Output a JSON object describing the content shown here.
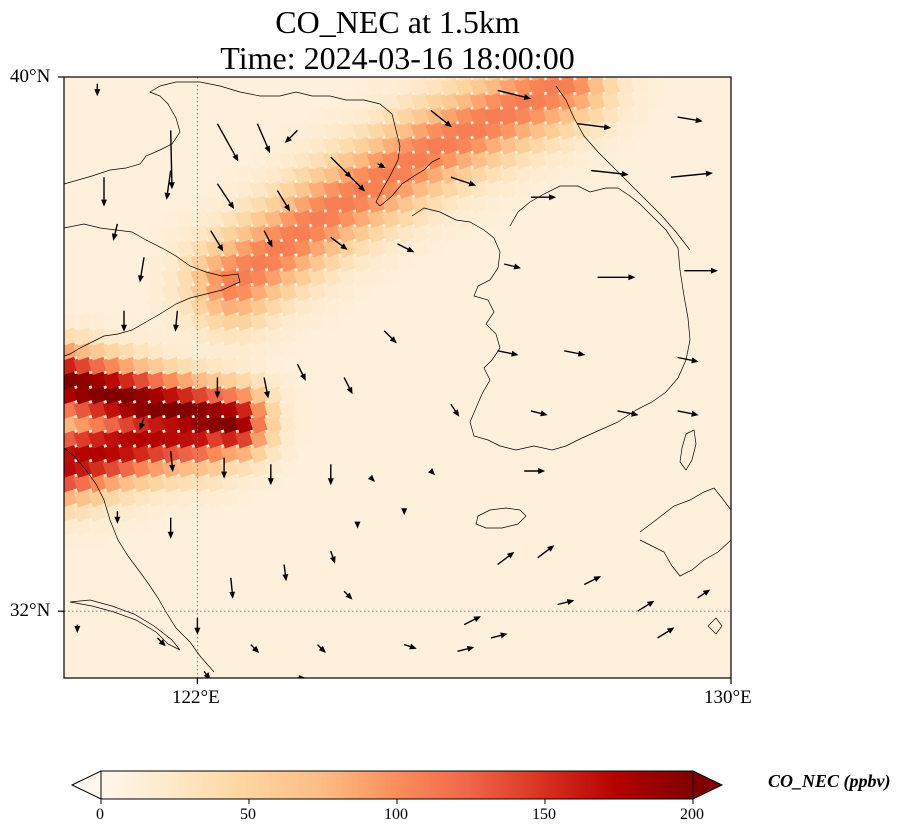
{
  "title": {
    "line1": "CO_NEC at 1.5km",
    "line2": "Time: 2024-03-16 18:00:00"
  },
  "map": {
    "lon_range": [
      120,
      130
    ],
    "lat_range": [
      31,
      40
    ],
    "lon_ticks": [
      {
        "value": 122,
        "label": "122°E"
      },
      {
        "value": 130,
        "label": "130°E"
      }
    ],
    "lat_ticks": [
      {
        "value": 40,
        "label": "40°N"
      },
      {
        "value": 32,
        "label": "32°N"
      }
    ],
    "gridlines": "dotted",
    "colormap": "OrRd",
    "background_value": 12
  },
  "colorbar": {
    "title": "CO_NEC (ppbv)",
    "min": 0,
    "max": 200,
    "ticks": [
      {
        "value": 0,
        "label": "0"
      },
      {
        "value": 50,
        "label": "50"
      },
      {
        "value": 100,
        "label": "100"
      },
      {
        "value": 150,
        "label": "150"
      },
      {
        "value": 200,
        "label": "200"
      }
    ],
    "extend": "both"
  },
  "chart_data": {
    "type": "heatmap",
    "variable": "CO_NEC",
    "units": "ppbv",
    "plumes": [
      {
        "name": "northern-band",
        "path": [
          [
            122.5,
            36.9
          ],
          [
            124.0,
            38.0
          ],
          [
            125.5,
            38.9
          ],
          [
            127.5,
            39.9
          ]
        ],
        "peak": 110,
        "width_deg": 0.45
      },
      {
        "name": "shandong-band",
        "path": [
          [
            120.0,
            35.4
          ],
          [
            121.5,
            35.0
          ],
          [
            122.5,
            34.8
          ]
        ],
        "peak": 200,
        "width_deg": 0.35
      },
      {
        "name": "southern-band",
        "path": [
          [
            120.0,
            34.2
          ],
          [
            121.3,
            34.6
          ],
          [
            122.0,
            34.7
          ]
        ],
        "peak": 175,
        "width_deg": 0.4
      }
    ],
    "wind_vectors": [
      {
        "lon": 120.5,
        "lat": 39.9,
        "u": 0.0,
        "v": -0.3
      },
      {
        "lon": 121.6,
        "lat": 39.2,
        "u": 0.03,
        "v": -1.4
      },
      {
        "lon": 122.3,
        "lat": 39.3,
        "u": 0.5,
        "v": -0.9
      },
      {
        "lon": 122.9,
        "lat": 39.3,
        "u": 0.3,
        "v": -0.7
      },
      {
        "lon": 123.5,
        "lat": 39.2,
        "u": -0.3,
        "v": -0.3
      },
      {
        "lon": 124.0,
        "lat": 38.8,
        "u": 0.5,
        "v": -0.5
      },
      {
        "lon": 124.7,
        "lat": 38.7,
        "u": 0.2,
        "v": -0.1
      },
      {
        "lon": 125.5,
        "lat": 39.5,
        "u": 0.5,
        "v": -0.4
      },
      {
        "lon": 126.5,
        "lat": 39.8,
        "u": 0.8,
        "v": -0.2
      },
      {
        "lon": 127.7,
        "lat": 39.3,
        "u": 0.8,
        "v": -0.1
      },
      {
        "lon": 129.2,
        "lat": 39.4,
        "u": 0.6,
        "v": -0.1
      },
      {
        "lon": 120.6,
        "lat": 38.5,
        "u": 0.0,
        "v": -0.7
      },
      {
        "lon": 121.6,
        "lat": 38.6,
        "u": -0.1,
        "v": -0.7
      },
      {
        "lon": 122.3,
        "lat": 38.4,
        "u": 0.4,
        "v": -0.6
      },
      {
        "lon": 123.2,
        "lat": 38.3,
        "u": 0.3,
        "v": -0.5
      },
      {
        "lon": 124.2,
        "lat": 38.6,
        "u": 0.5,
        "v": -0.5
      },
      {
        "lon": 125.8,
        "lat": 38.5,
        "u": 0.6,
        "v": -0.2
      },
      {
        "lon": 127.0,
        "lat": 38.2,
        "u": 0.6,
        "v": 0.0
      },
      {
        "lon": 127.9,
        "lat": 38.6,
        "u": 0.9,
        "v": -0.1
      },
      {
        "lon": 129.1,
        "lat": 38.5,
        "u": 1.0,
        "v": 0.1
      },
      {
        "lon": 120.8,
        "lat": 37.8,
        "u": -0.1,
        "v": -0.4
      },
      {
        "lon": 121.2,
        "lat": 37.3,
        "u": -0.1,
        "v": -0.6
      },
      {
        "lon": 122.2,
        "lat": 37.7,
        "u": 0.3,
        "v": -0.5
      },
      {
        "lon": 123.0,
        "lat": 37.7,
        "u": 0.2,
        "v": -0.4
      },
      {
        "lon": 124.0,
        "lat": 37.6,
        "u": 0.4,
        "v": -0.3
      },
      {
        "lon": 125.0,
        "lat": 37.5,
        "u": 0.4,
        "v": -0.2
      },
      {
        "lon": 126.6,
        "lat": 37.2,
        "u": 0.4,
        "v": -0.1
      },
      {
        "lon": 128.0,
        "lat": 37.0,
        "u": 0.9,
        "v": 0.0
      },
      {
        "lon": 129.3,
        "lat": 37.1,
        "u": 0.8,
        "v": 0.0
      },
      {
        "lon": 120.9,
        "lat": 36.5,
        "u": 0.0,
        "v": -0.5
      },
      {
        "lon": 121.7,
        "lat": 36.5,
        "u": -0.05,
        "v": -0.5
      },
      {
        "lon": 124.8,
        "lat": 36.2,
        "u": 0.3,
        "v": -0.3
      },
      {
        "lon": 126.5,
        "lat": 35.9,
        "u": 0.5,
        "v": -0.1
      },
      {
        "lon": 127.5,
        "lat": 35.9,
        "u": 0.5,
        "v": -0.1
      },
      {
        "lon": 129.2,
        "lat": 35.8,
        "u": 0.5,
        "v": -0.1
      },
      {
        "lon": 122.3,
        "lat": 35.5,
        "u": 0.0,
        "v": -0.5
      },
      {
        "lon": 123.0,
        "lat": 35.5,
        "u": 0.1,
        "v": -0.5
      },
      {
        "lon": 123.5,
        "lat": 35.7,
        "u": 0.2,
        "v": -0.4
      },
      {
        "lon": 124.2,
        "lat": 35.5,
        "u": 0.2,
        "v": -0.4
      },
      {
        "lon": 125.8,
        "lat": 35.1,
        "u": 0.2,
        "v": -0.3
      },
      {
        "lon": 127.0,
        "lat": 35.0,
        "u": 0.4,
        "v": -0.1
      },
      {
        "lon": 128.3,
        "lat": 35.0,
        "u": 0.5,
        "v": -0.1
      },
      {
        "lon": 129.2,
        "lat": 35.0,
        "u": 0.5,
        "v": -0.1
      },
      {
        "lon": 121.2,
        "lat": 34.9,
        "u": -0.1,
        "v": -0.3
      },
      {
        "lon": 121.6,
        "lat": 34.4,
        "u": 0.05,
        "v": -0.5
      },
      {
        "lon": 122.4,
        "lat": 34.3,
        "u": 0.0,
        "v": -0.5
      },
      {
        "lon": 123.1,
        "lat": 34.2,
        "u": 0.0,
        "v": -0.5
      },
      {
        "lon": 124.0,
        "lat": 34.2,
        "u": 0.0,
        "v": -0.5
      },
      {
        "lon": 124.6,
        "lat": 34.0,
        "u": 0.1,
        "v": -0.1
      },
      {
        "lon": 125.5,
        "lat": 34.1,
        "u": 0.1,
        "v": -0.1
      },
      {
        "lon": 126.9,
        "lat": 34.1,
        "u": 0.5,
        "v": 0.0
      },
      {
        "lon": 120.8,
        "lat": 33.5,
        "u": 0.0,
        "v": -0.3
      },
      {
        "lon": 121.6,
        "lat": 33.4,
        "u": 0.0,
        "v": -0.5
      },
      {
        "lon": 124.4,
        "lat": 33.3,
        "u": 0.0,
        "v": -0.1
      },
      {
        "lon": 125.1,
        "lat": 33.5,
        "u": 0.0,
        "v": -0.1
      },
      {
        "lon": 126.5,
        "lat": 32.7,
        "u": 0.4,
        "v": 0.3
      },
      {
        "lon": 127.1,
        "lat": 32.8,
        "u": 0.4,
        "v": 0.3
      },
      {
        "lon": 128.6,
        "lat": 32.0,
        "u": 0.4,
        "v": 0.25
      },
      {
        "lon": 128.9,
        "lat": 31.6,
        "u": 0.4,
        "v": 0.25
      },
      {
        "lon": 122.0,
        "lat": 31.9,
        "u": 0.0,
        "v": -0.4
      },
      {
        "lon": 122.5,
        "lat": 32.5,
        "u": 0.05,
        "v": -0.5
      },
      {
        "lon": 123.3,
        "lat": 32.7,
        "u": 0.05,
        "v": -0.4
      },
      {
        "lon": 124.0,
        "lat": 32.9,
        "u": 0.1,
        "v": -0.3
      },
      {
        "lon": 124.2,
        "lat": 32.3,
        "u": 0.2,
        "v": -0.2
      },
      {
        "lon": 123.8,
        "lat": 31.5,
        "u": 0.2,
        "v": -0.2
      },
      {
        "lon": 125.1,
        "lat": 31.5,
        "u": 0.3,
        "v": -0.1
      },
      {
        "lon": 126.0,
        "lat": 31.8,
        "u": 0.4,
        "v": 0.2
      },
      {
        "lon": 126.4,
        "lat": 31.6,
        "u": 0.4,
        "v": 0.1
      },
      {
        "lon": 127.8,
        "lat": 32.4,
        "u": 0.4,
        "v": 0.2
      },
      {
        "lon": 127.4,
        "lat": 32.1,
        "u": 0.4,
        "v": 0.1
      },
      {
        "lon": 129.5,
        "lat": 32.2,
        "u": 0.3,
        "v": 0.2
      },
      {
        "lon": 120.2,
        "lat": 31.8,
        "u": 0.0,
        "v": -0.2
      },
      {
        "lon": 121.4,
        "lat": 31.6,
        "u": 0.2,
        "v": -0.2
      },
      {
        "lon": 122.1,
        "lat": 31.1,
        "u": 0.15,
        "v": -0.2
      },
      {
        "lon": 122.8,
        "lat": 31.5,
        "u": 0.2,
        "v": -0.2
      },
      {
        "lon": 123.5,
        "lat": 31.0,
        "u": 0.2,
        "v": 0.0
      },
      {
        "lon": 125.9,
        "lat": 31.4,
        "u": 0.4,
        "v": 0.1
      },
      {
        "lon": 128.9,
        "lat": 30.8,
        "u": 0.3,
        "v": 0.2
      }
    ]
  }
}
